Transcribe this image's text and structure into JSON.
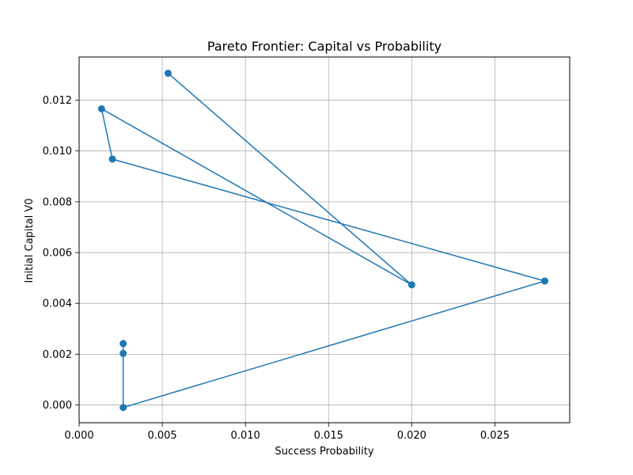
{
  "chart_data": {
    "type": "line",
    "title": "Pareto Frontier: Capital vs Probability",
    "xlabel": "Success Probability",
    "ylabel": "Initial Capital V0",
    "xlim": [
      0.0,
      0.0295
    ],
    "ylim": [
      -0.0007,
      0.0137
    ],
    "xticks": [
      "0.000",
      "0.005",
      "0.010",
      "0.015",
      "0.020",
      "0.025"
    ],
    "xtick_values": [
      0.0,
      0.005,
      0.01,
      0.015,
      0.02,
      0.025
    ],
    "yticks": [
      "0.000",
      "0.002",
      "0.004",
      "0.006",
      "0.008",
      "0.010",
      "0.012"
    ],
    "ytick_values": [
      0.0,
      0.002,
      0.004,
      0.006,
      0.008,
      0.01,
      0.012
    ],
    "grid": true,
    "marker": "circle",
    "color": "#1f77b4",
    "x": [
      0.00535,
      0.02,
      0.00135,
      0.002,
      0.028,
      0.00265,
      0.00265,
      0.00265
    ],
    "y": [
      0.01306,
      0.00473,
      0.01166,
      0.00968,
      0.00488,
      -0.0001,
      0.00203,
      0.00242
    ]
  }
}
